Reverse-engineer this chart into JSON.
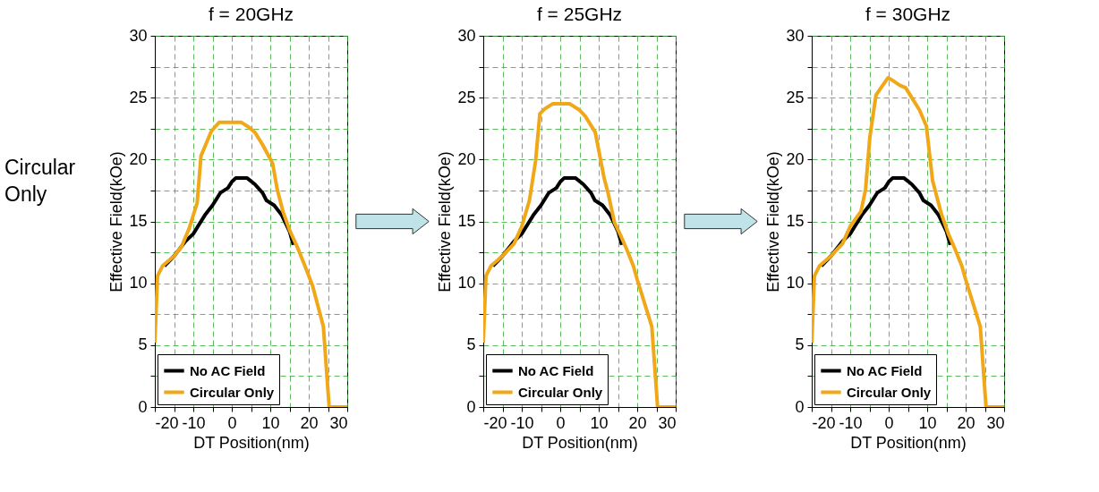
{
  "chart_data": [
    {
      "type": "line",
      "title": "f = 20GHz",
      "xlabel": "DT Position(nm)",
      "ylabel": "Effective Field(kOe)",
      "annotations": [
        "Circular Only"
      ],
      "xlim": [
        -20,
        30
      ],
      "xticks": [
        -20,
        {
          "value": -15,
          "label": null
        },
        -10,
        {
          "value": -5,
          "label": null
        },
        0,
        {
          "value": 5,
          "label": null
        },
        10,
        {
          "value": 15,
          "label": null
        },
        20,
        {
          "value": 25,
          "label": null
        },
        30
      ],
      "ylim": [
        0,
        30
      ],
      "yticks": [
        0,
        {
          "value": 2.5,
          "label": null
        },
        5,
        {
          "value": 7.5,
          "label": null
        },
        10,
        {
          "value": 12.5,
          "label": null
        },
        15,
        {
          "value": 17.5,
          "label": null
        },
        20,
        {
          "value": 22.5,
          "label": null
        },
        25,
        {
          "value": 27.5,
          "label": null
        },
        30
      ],
      "grid": true,
      "legend": "bottom left",
      "line_style": "solid",
      "marker": "none",
      "series": [
        {
          "name": "No AC Field",
          "color": "#000000",
          "x": [
            -17.5,
            -15,
            -12,
            -10,
            -7,
            -5,
            -3,
            -1,
            0,
            1,
            4,
            6,
            8,
            9,
            11,
            13,
            15,
            16
          ],
          "values": [
            11.4,
            12.2,
            13.4,
            14,
            15.5,
            16.3,
            17.3,
            17.7,
            18.2,
            18.5,
            18.5,
            18,
            17.3,
            16.7,
            16.3,
            15.5,
            14.2,
            13.1
          ]
        },
        {
          "name": "Circular Only",
          "color": "#f0a818",
          "x": [
            -20,
            -19.3,
            -18,
            -15,
            -13,
            -11,
            -9,
            -8,
            -5.3,
            -3.3,
            -1.5,
            2.5,
            4.5,
            6,
            8,
            10.6,
            11.8,
            13.3,
            15,
            17.2,
            19,
            21,
            23.8,
            25.3,
            30
          ],
          "values": [
            5.2,
            10.6,
            11.4,
            12.2,
            13,
            14.5,
            16.5,
            20.3,
            22.3,
            23,
            23,
            23,
            22.6,
            22.2,
            21.2,
            19.7,
            17.6,
            15.8,
            14.3,
            12.8,
            11.4,
            9.8,
            6.5,
            0,
            0
          ]
        }
      ]
    },
    {
      "type": "line",
      "title": "f = 25GHz",
      "xlabel": "DT Position(nm)",
      "ylabel": "Effective Field(kOe)",
      "xlim": [
        -20,
        30
      ],
      "xticks": [
        -20,
        {
          "value": -15,
          "label": null
        },
        -10,
        {
          "value": -5,
          "label": null
        },
        0,
        {
          "value": 5,
          "label": null
        },
        10,
        {
          "value": 15,
          "label": null
        },
        20,
        {
          "value": 25,
          "label": null
        },
        30
      ],
      "ylim": [
        0,
        30
      ],
      "yticks": [
        0,
        {
          "value": 2.5,
          "label": null
        },
        5,
        {
          "value": 7.5,
          "label": null
        },
        10,
        {
          "value": 12.5,
          "label": null
        },
        15,
        {
          "value": 17.5,
          "label": null
        },
        20,
        {
          "value": 22.5,
          "label": null
        },
        25,
        {
          "value": 27.5,
          "label": null
        },
        30
      ],
      "grid": true,
      "legend": "bottom left",
      "line_style": "solid",
      "marker": "none",
      "series": [
        {
          "name": "No AC Field",
          "color": "#000000",
          "x": [
            -17.5,
            -15,
            -12,
            -10,
            -7,
            -5,
            -3,
            -1,
            0,
            1,
            4,
            6,
            8,
            9,
            11,
            13,
            15,
            16
          ],
          "values": [
            11.4,
            12.2,
            13.4,
            14,
            15.5,
            16.3,
            17.3,
            17.7,
            18.2,
            18.5,
            18.5,
            18,
            17.3,
            16.7,
            16.3,
            15.5,
            14.2,
            13.1
          ]
        },
        {
          "name": "Circular Only",
          "color": "#f0a818",
          "x": [
            -20,
            -19.3,
            -18,
            -15,
            -12,
            -10,
            -8,
            -6.4,
            -5.3,
            -4,
            -2,
            2.5,
            5,
            6.5,
            9.1,
            11.4,
            12.5,
            14.1,
            15.5,
            17.2,
            19,
            20,
            23.8,
            25.3,
            30
          ],
          "values": [
            5.2,
            10.6,
            11.4,
            12.2,
            13.2,
            14.6,
            16.7,
            19.9,
            23.7,
            24.1,
            24.5,
            24.5,
            24,
            23.5,
            22.2,
            18.5,
            17.2,
            14.9,
            14,
            12.8,
            11.4,
            10.3,
            6.5,
            0,
            0
          ]
        }
      ]
    },
    {
      "type": "line",
      "title": "f = 30GHz",
      "xlabel": "DT Position(nm)",
      "ylabel": "Effective Field(kOe)",
      "xlim": [
        -20,
        30
      ],
      "xticks": [
        -20,
        {
          "value": -15,
          "label": null
        },
        -10,
        {
          "value": -5,
          "label": null
        },
        0,
        {
          "value": 5,
          "label": null
        },
        10,
        {
          "value": 15,
          "label": null
        },
        20,
        {
          "value": 25,
          "label": null
        },
        30
      ],
      "ylim": [
        0,
        30
      ],
      "yticks": [
        0,
        {
          "value": 2.5,
          "label": null
        },
        5,
        {
          "value": 7.5,
          "label": null
        },
        10,
        {
          "value": 12.5,
          "label": null
        },
        15,
        {
          "value": 17.5,
          "label": null
        },
        20,
        {
          "value": 22.5,
          "label": null
        },
        25,
        {
          "value": 27.5,
          "label": null
        },
        30
      ],
      "grid": true,
      "legend": "bottom left",
      "line_style": "solid",
      "marker": "none",
      "series": [
        {
          "name": "No AC Field",
          "color": "#000000",
          "x": [
            -17.5,
            -15,
            -12,
            -10,
            -7,
            -5,
            -3,
            -1,
            0,
            1,
            4,
            6,
            8,
            9,
            11,
            13,
            15,
            16
          ],
          "values": [
            11.4,
            12.2,
            13.4,
            14,
            15.5,
            16.3,
            17.3,
            17.7,
            18.2,
            18.5,
            18.5,
            18,
            17.3,
            16.7,
            16.3,
            15.5,
            14.2,
            13.1
          ]
        },
        {
          "name": "Circular Only",
          "color": "#f0a818",
          "x": [
            -20,
            -19.3,
            -18,
            -15,
            -12,
            -10,
            -7.2,
            -6,
            -4.9,
            -3.3,
            -2,
            -0.2,
            1,
            2.9,
            4.4,
            6,
            8,
            9.8,
            11.4,
            12.5,
            13.7,
            15.5,
            17.2,
            19,
            20,
            23.8,
            25.3,
            30
          ],
          "values": [
            5.2,
            10.6,
            11.4,
            12.2,
            13.2,
            14.6,
            15.8,
            17.6,
            21.8,
            25.2,
            25.8,
            26.6,
            26.4,
            26,
            25.8,
            25,
            24,
            22.7,
            18.3,
            17,
            15.6,
            14,
            12.8,
            11.4,
            10.3,
            6.5,
            0,
            0
          ]
        }
      ]
    }
  ]
}
